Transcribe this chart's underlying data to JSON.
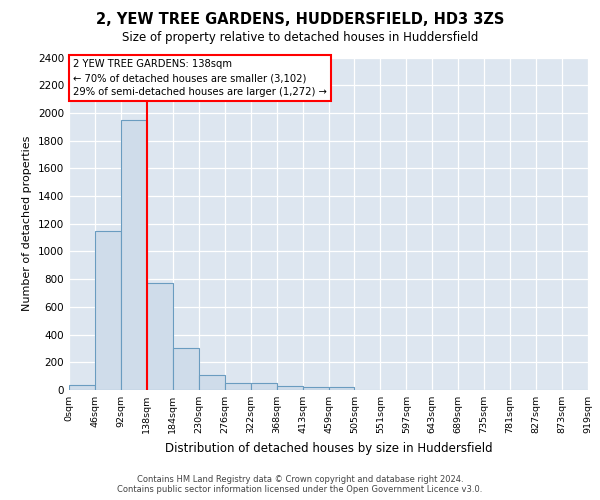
{
  "title": "2, YEW TREE GARDENS, HUDDERSFIELD, HD3 3ZS",
  "subtitle": "Size of property relative to detached houses in Huddersfield",
  "xlabel": "Distribution of detached houses by size in Huddersfield",
  "ylabel": "Number of detached properties",
  "bar_color": "#cfdcea",
  "bar_edge_color": "#6a9cc0",
  "background_color": "#dde6f0",
  "grid_color": "#ffffff",
  "red_line_x": 138,
  "bin_width": 46,
  "num_bins": 20,
  "bar_heights": [
    35,
    1150,
    1950,
    775,
    300,
    105,
    50,
    50,
    30,
    20,
    20,
    0,
    0,
    0,
    0,
    0,
    0,
    0,
    0,
    0
  ],
  "tick_labels": [
    "0sqm",
    "46sqm",
    "92sqm",
    "138sqm",
    "184sqm",
    "230sqm",
    "276sqm",
    "322sqm",
    "368sqm",
    "413sqm",
    "459sqm",
    "505sqm",
    "551sqm",
    "597sqm",
    "643sqm",
    "689sqm",
    "735sqm",
    "781sqm",
    "827sqm",
    "873sqm",
    "919sqm"
  ],
  "ylim": [
    0,
    2400
  ],
  "yticks": [
    0,
    200,
    400,
    600,
    800,
    1000,
    1200,
    1400,
    1600,
    1800,
    2000,
    2200,
    2400
  ],
  "annotation_line1": "2 YEW TREE GARDENS: 138sqm",
  "annotation_line2": "← 70% of detached houses are smaller (3,102)",
  "annotation_line3": "29% of semi-detached houses are larger (1,272) →",
  "footer_line1": "Contains HM Land Registry data © Crown copyright and database right 2024.",
  "footer_line2": "Contains public sector information licensed under the Open Government Licence v3.0."
}
